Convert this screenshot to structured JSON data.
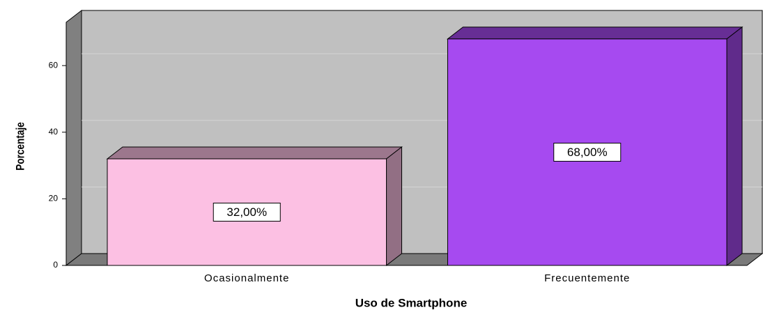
{
  "chart_data": {
    "type": "bar3d",
    "x_label": "Uso de Smartphone",
    "y_label": "Porcentaje",
    "categories": [
      "Ocasionalmente",
      "Frecuentemente"
    ],
    "values": [
      32,
      68
    ],
    "value_labels": [
      "32,00%",
      "68,00%"
    ],
    "colors": [
      "#fcc0e3",
      "#a64af0"
    ],
    "ylim": [
      0,
      73
    ],
    "yticks": [
      0,
      20,
      40,
      60
    ],
    "grid": true
  }
}
